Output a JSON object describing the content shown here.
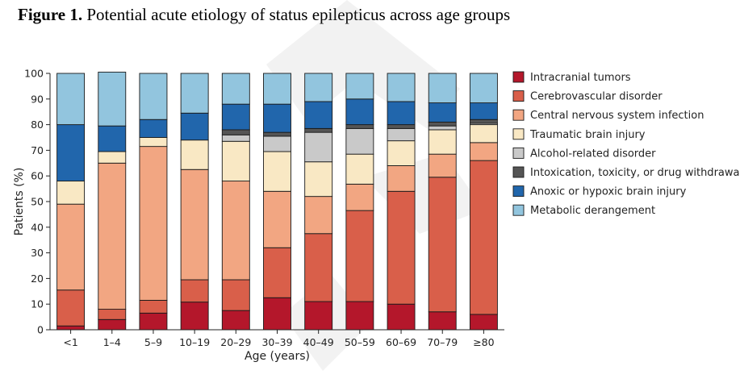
{
  "figure": {
    "label": "Figure 1.",
    "caption": " Potential acute etiology of status epilepticus across age groups"
  },
  "chart_data": {
    "type": "bar",
    "stacked": true,
    "title": "Potential acute etiology of status epilepticus across age groups",
    "xlabel": "Age (years)",
    "ylabel": "Patients (%)",
    "ylim": [
      0,
      100
    ],
    "yticks": [
      0,
      10,
      20,
      30,
      40,
      50,
      60,
      70,
      80,
      90,
      100
    ],
    "grid": false,
    "legend_position": "right",
    "categories": [
      "<1",
      "1–4",
      "5–9",
      "10–19",
      "20–29",
      "30–39",
      "40–49",
      "50–59",
      "60–69",
      "70–79",
      "≥80"
    ],
    "series": [
      {
        "name": "Intracranial tumors",
        "color": "#b4172b",
        "values": [
          1.5,
          4,
          6.5,
          10.8,
          7.5,
          12.5,
          11,
          11,
          10,
          7,
          6
        ]
      },
      {
        "name": "Cerebrovascular disorder",
        "color": "#d95f4a",
        "values": [
          14,
          4,
          5,
          8.7,
          12,
          19.5,
          26.5,
          35.5,
          44,
          52.5,
          60
        ]
      },
      {
        "name": "Central nervous system infection",
        "color": "#f2a682",
        "values": [
          33.5,
          57,
          60,
          43,
          38.5,
          22,
          14.5,
          10.3,
          10,
          9,
          7
        ]
      },
      {
        "name": "Traumatic brain injury",
        "color": "#f9e8c4",
        "values": [
          9,
          4.5,
          3.5,
          11.5,
          15.5,
          15.5,
          13.5,
          11.7,
          9.7,
          9.5,
          7
        ]
      },
      {
        "name": "Alcohol-related disorder",
        "color": "#c9c9c9",
        "values": [
          0,
          0,
          0,
          0,
          2.5,
          6,
          11.5,
          10,
          4.8,
          1.5,
          0.5
        ]
      },
      {
        "name": "Intoxication, toxicity, or drug withdrawal",
        "color": "#555555",
        "values": [
          0,
          0,
          0,
          0,
          2,
          1.5,
          1.5,
          1.5,
          1.5,
          1.5,
          1.5
        ]
      },
      {
        "name": "Anoxic or hypoxic brain injury",
        "color": "#2166ac",
        "values": [
          22,
          10,
          7,
          10.5,
          10,
          11,
          10.5,
          10,
          9,
          7.5,
          6.5
        ]
      },
      {
        "name": "Metabolic derangement",
        "color": "#92c5de",
        "values": [
          20,
          21,
          18,
          15.5,
          12,
          12,
          11,
          10,
          11,
          11.5,
          11.5
        ]
      }
    ]
  }
}
